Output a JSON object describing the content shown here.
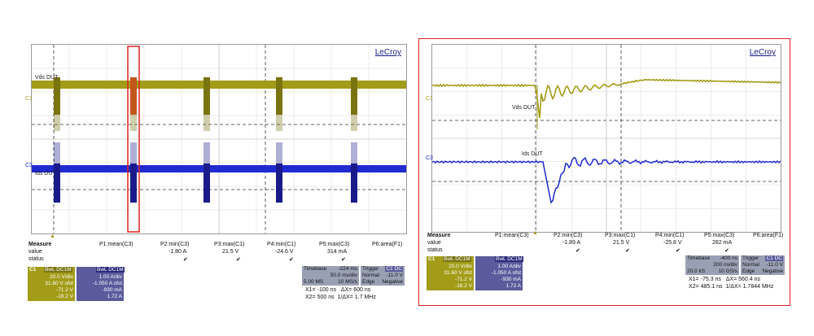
{
  "colors": {
    "c1": "#a39c18",
    "c3": "#1f2ad0",
    "highlight": "#e02020",
    "timebox": "#9aa0b4",
    "c3box": "#5a5a9c"
  },
  "left": {
    "brand": "LeCroy",
    "trace_labels": {
      "vds": "Vds DUT",
      "ids": "Ids DUT",
      "c1": "C1",
      "c3": "C3"
    },
    "measure": {
      "title": "Measure",
      "row_value": "value",
      "row_status": "status",
      "cols": [
        "P1:mean(C3)",
        "P2:min(C3)",
        "P3:max(C1)",
        "P4:min(C1)",
        "P5:max(C3)",
        "P6:area(F1)"
      ],
      "values": [
        "",
        "-1.80 A",
        "21.5 V",
        "-24.6 V",
        "314 mA",
        ""
      ],
      "status": [
        "",
        "✔",
        "✔",
        "✔",
        "✔",
        ""
      ]
    },
    "c1_box": {
      "title": "C1",
      "badge": "BwL DC1M",
      "line1": "20.0 V/div",
      "line2": "31.60 V ofst",
      "line3": "-71.2 V",
      "line4": "-18.2 V"
    },
    "c3_box": {
      "badge": "BwL DC1M",
      "line1": "1.00 A/div",
      "line2": "-1.050 A ofst",
      "line3": "-930 mA",
      "line4": "1.72 A"
    },
    "timebase": {
      "title": "Timebase",
      "offset": "-224 ms",
      "div": "50.0 ms/div",
      "samples": "5.00 MS",
      "rate": "10 MS/s"
    },
    "trigger": {
      "title": "Trigger",
      "badge": "C1 DC",
      "mode": "Normal",
      "level": "-11.0 V",
      "type": "Edge",
      "slope": "Negative"
    },
    "cursors": {
      "x1_label": "X1=",
      "x1": "-100 ns",
      "dx_label": "ΔX=",
      "dx": "600 ns",
      "x2_label": "X2=",
      "x2": "500 ns",
      "inv_label": "1/ΔX=",
      "inv": "1.7 MHz"
    }
  },
  "right": {
    "brand": "LeCroy",
    "trace_labels": {
      "vds": "Vds DUT",
      "ids": "Ids DUT",
      "c1": "C1",
      "c3": "C3"
    },
    "measure": {
      "title": "Measure",
      "row_value": "value",
      "row_status": "status",
      "cols": [
        "P1:mean(C3)",
        "P2:min(C3)",
        "P3:max(C1)",
        "P4:min(C1)",
        "P5:max(C3)",
        "P6:area(F1)"
      ],
      "values": [
        "",
        "-1.89 A",
        "21.5 V",
        "-25.8 V",
        "282 mA",
        ""
      ],
      "status": [
        "",
        "✔",
        "✔",
        "✔",
        "✔",
        ""
      ]
    },
    "c1_box": {
      "title": "C1",
      "badge": "BwL DC1M",
      "line1": "20.0 V/div",
      "line2": "31.60 V ofst",
      "line3": "-71.2 V",
      "line4": "-18.2 V"
    },
    "c3_box": {
      "badge": "BwL DC1M",
      "line1": "1.00 A/div",
      "line2": "-1.050 A ofst",
      "line3": "-930 mA",
      "line4": "1.72 A"
    },
    "timebase": {
      "title": "Timebase",
      "offset": "-400 ns",
      "div": "200 ns/div",
      "samples": "20.0 kS",
      "rate": "10 GS/s"
    },
    "trigger": {
      "title": "Trigger",
      "badge": "C1 DC",
      "mode": "Normal",
      "level": "-11.0 V",
      "type": "Edge",
      "slope": "Negative"
    },
    "cursors": {
      "x1_label": "X1=",
      "x1": "-75.3 ns",
      "dx_label": "ΔX=",
      "dx": "560.4 ns",
      "x2_label": "X2=",
      "x2": "485.1 ns",
      "inv_label": "1/ΔX=",
      "inv": "1.7844 MHz"
    }
  }
}
